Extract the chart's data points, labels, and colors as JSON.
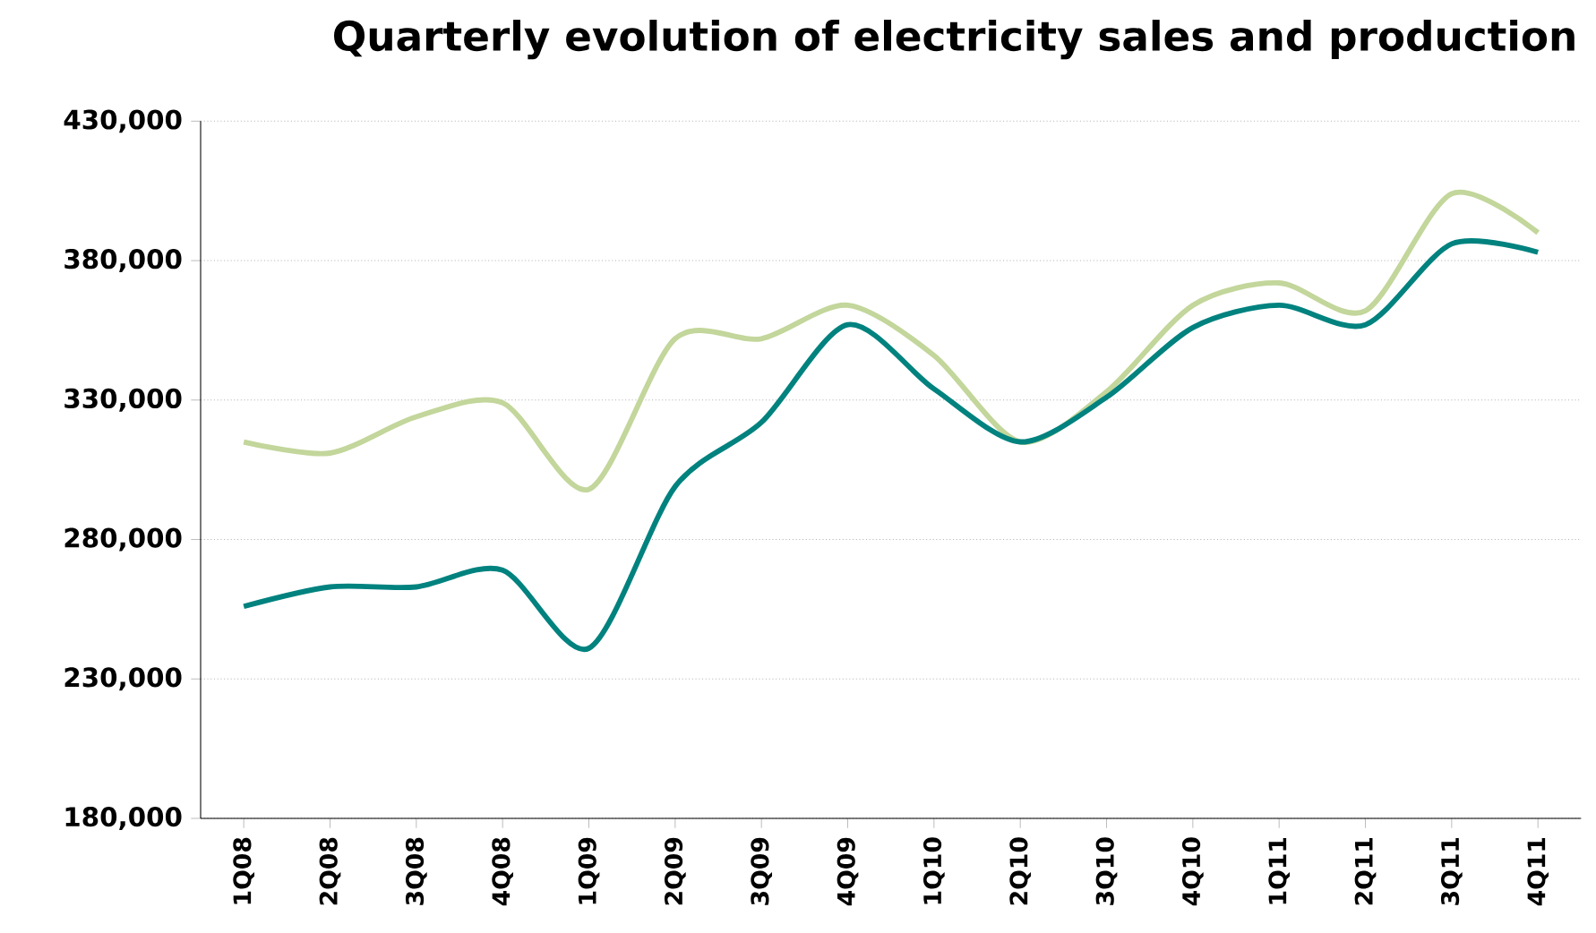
{
  "chart_data": {
    "type": "line",
    "title": "Quarterly evolution of electricity sales and production",
    "categories": [
      "1Q08",
      "2Q08",
      "3Q08",
      "4Q08",
      "1Q09",
      "2Q09",
      "3Q09",
      "4Q09",
      "1Q10",
      "2Q10",
      "3Q10",
      "4Q10",
      "1Q11",
      "2Q11",
      "3Q11",
      "4Q11"
    ],
    "series": [
      {
        "color": "#c3d69b",
        "values": [
          315000,
          311000,
          324000,
          329000,
          298000,
          352000,
          352000,
          364000,
          346000,
          315000,
          333000,
          364000,
          372000,
          362000,
          404000,
          390000
        ]
      },
      {
        "color": "#00827f",
        "values": [
          256000,
          263000,
          263000,
          269000,
          241000,
          299000,
          322000,
          357000,
          334000,
          315000,
          331000,
          356000,
          364000,
          357000,
          386000,
          383000
        ]
      }
    ],
    "ylim": [
      180000,
      430000
    ],
    "yticks": [
      {
        "value": 180000,
        "label": "180,000"
      },
      {
        "value": 230000,
        "label": "230,000"
      },
      {
        "value": 280000,
        "label": "280,000"
      },
      {
        "value": 330000,
        "label": "330,000"
      },
      {
        "value": 380000,
        "label": "380,000"
      },
      {
        "value": 430000,
        "label": "430,000"
      }
    ],
    "grid": "y",
    "marker": "none",
    "line_style": "solid"
  }
}
